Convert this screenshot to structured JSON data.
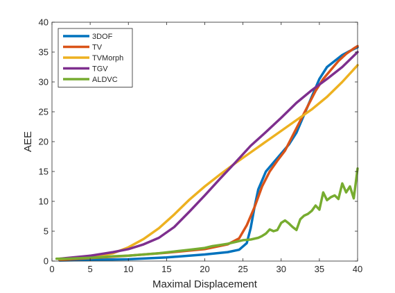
{
  "chart_data": {
    "type": "line",
    "title": "",
    "xlabel": "Maximal Displacement",
    "ylabel": "AEE",
    "xlim": [
      0,
      40
    ],
    "ylim": [
      0,
      40
    ],
    "xticks": [
      0,
      5,
      10,
      15,
      20,
      25,
      30,
      35,
      40
    ],
    "yticks": [
      0,
      5,
      10,
      15,
      20,
      25,
      30,
      35,
      40
    ],
    "grid": false,
    "legend_position": "top-left",
    "series": [
      {
        "name": "3DOF",
        "color": "#0072BD",
        "x": [
          1,
          5,
          10,
          15,
          20,
          23,
          24.5,
          25.5,
          26,
          26.5,
          27,
          28,
          29,
          30,
          31,
          32,
          33,
          34,
          35,
          36,
          37,
          38,
          39,
          40
        ],
        "y": [
          0.1,
          0.2,
          0.3,
          0.6,
          1.1,
          1.5,
          1.9,
          3.0,
          5.5,
          9.0,
          12.0,
          15.0,
          16.5,
          18.0,
          19.5,
          21.5,
          24.5,
          27.5,
          30.5,
          32.5,
          33.5,
          34.5,
          35.2,
          35.8
        ]
      },
      {
        "name": "TV",
        "color": "#D95319",
        "x": [
          1,
          5,
          10,
          15,
          20,
          23,
          24.5,
          25.5,
          26.5,
          27.5,
          28.5,
          29.5,
          30.5,
          31.5,
          32.5,
          33.5,
          34.5,
          35.5,
          36.5,
          37.5,
          38.5,
          39.5,
          40
        ],
        "y": [
          0.2,
          0.5,
          0.9,
          1.4,
          2.0,
          2.8,
          3.8,
          6.0,
          9.0,
          12.5,
          15.0,
          16.8,
          18.5,
          21.0,
          23.5,
          26.0,
          28.5,
          30.5,
          32.0,
          33.5,
          34.7,
          35.6,
          36.0
        ]
      },
      {
        "name": "TVMorph",
        "color": "#EDB120",
        "x": [
          1,
          5,
          8,
          10,
          12,
          14,
          16,
          18,
          20,
          22,
          24,
          26,
          28,
          30,
          32,
          34,
          36,
          38,
          40
        ],
        "y": [
          0.3,
          0.6,
          1.3,
          2.3,
          3.7,
          5.5,
          7.8,
          10.3,
          12.5,
          14.5,
          16.4,
          18.2,
          20.0,
          21.8,
          23.6,
          25.4,
          27.5,
          30.0,
          32.8
        ]
      },
      {
        "name": "TGV",
        "color": "#7E2F8E",
        "x": [
          1,
          5,
          8,
          10,
          12,
          14,
          16,
          18,
          20,
          22,
          24,
          26,
          28,
          30,
          32,
          34,
          36,
          38,
          40
        ],
        "y": [
          0.4,
          0.9,
          1.5,
          2.0,
          2.8,
          3.9,
          5.7,
          8.3,
          11.0,
          13.8,
          16.5,
          19.3,
          21.6,
          24.0,
          26.5,
          28.6,
          30.5,
          32.5,
          35.0
        ]
      },
      {
        "name": "ALDVC",
        "color": "#77AC30",
        "x": [
          0.6,
          2,
          4,
          6,
          8,
          10,
          12,
          14,
          16,
          18,
          20,
          21,
          22,
          23,
          24,
          25,
          26,
          27,
          27.5,
          28,
          28.5,
          29,
          29.5,
          30,
          30.5,
          31,
          31.5,
          32,
          32.5,
          33,
          33.5,
          34,
          34.5,
          35,
          35.5,
          36,
          36.5,
          37,
          37.5,
          38,
          38.5,
          39,
          39.5,
          40
        ],
        "y": [
          0.4,
          0.4,
          0.5,
          0.6,
          0.8,
          0.9,
          1.1,
          1.3,
          1.6,
          1.9,
          2.2,
          2.5,
          2.7,
          2.9,
          3.2,
          3.5,
          3.6,
          3.9,
          4.2,
          4.6,
          5.3,
          5.0,
          5.2,
          6.4,
          6.8,
          6.3,
          5.7,
          5.2,
          7.0,
          7.6,
          7.9,
          8.4,
          9.3,
          8.6,
          11.5,
          10.2,
          10.7,
          11.0,
          10.4,
          13.0,
          11.5,
          12.5,
          10.5,
          15.5
        ]
      }
    ]
  }
}
